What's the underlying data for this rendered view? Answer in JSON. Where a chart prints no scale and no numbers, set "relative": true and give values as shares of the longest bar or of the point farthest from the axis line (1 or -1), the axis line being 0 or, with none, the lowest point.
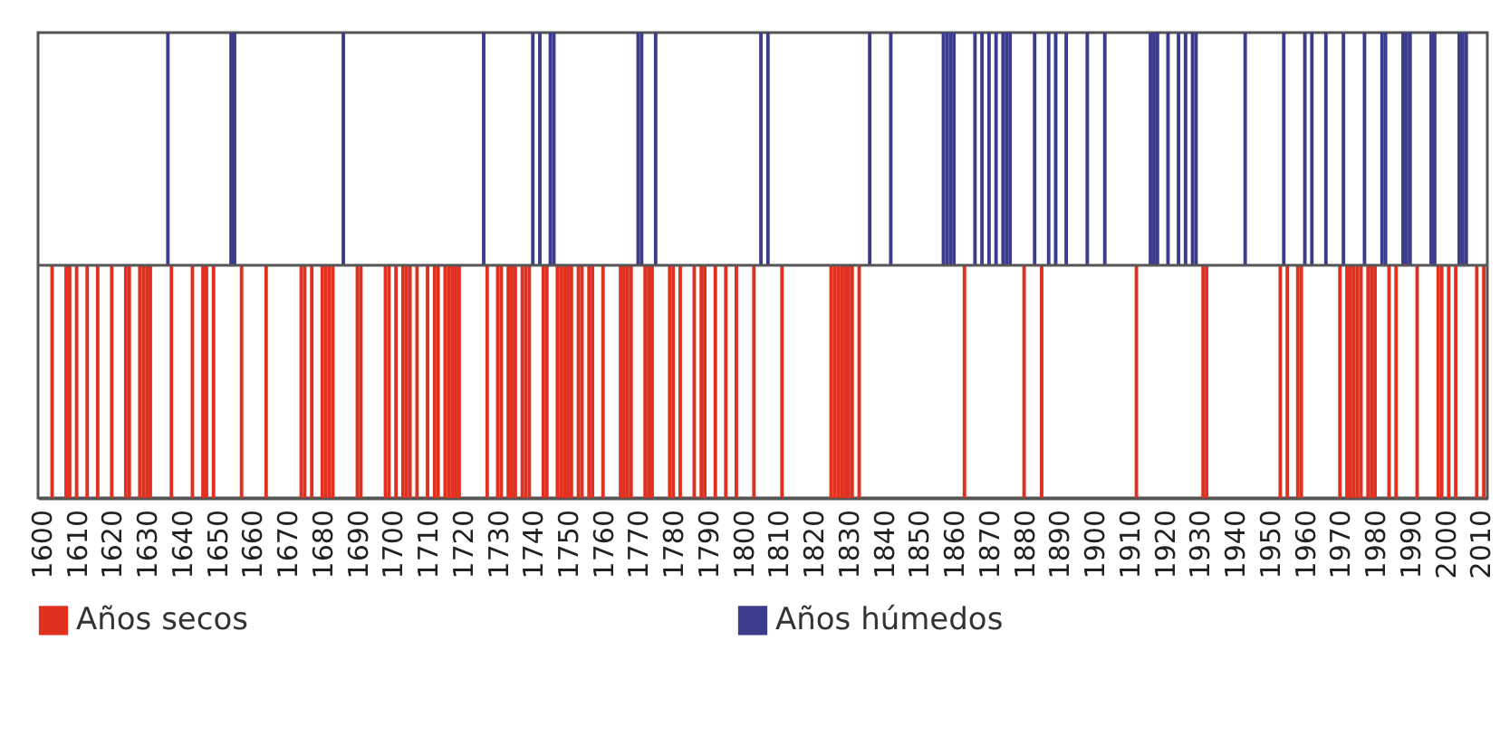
{
  "chart_data": {
    "type": "bar",
    "relative": true,
    "xlim": [
      1599,
      2012
    ],
    "xticks": [
      1600,
      1610,
      1620,
      1630,
      1640,
      1650,
      1660,
      1670,
      1680,
      1690,
      1700,
      1710,
      1720,
      1730,
      1740,
      1750,
      1760,
      1770,
      1780,
      1790,
      1800,
      1810,
      1820,
      1830,
      1840,
      1850,
      1860,
      1870,
      1880,
      1890,
      1900,
      1910,
      1920,
      1930,
      1940,
      1950,
      1960,
      1970,
      1980,
      1990,
      2000,
      2010
    ],
    "tick_labels": "x",
    "legend": "bottom",
    "grid": false,
    "series": [
      {
        "name": "Años secos",
        "color": "#e03020",
        "x": [
          1603,
          1607,
          1608,
          1610,
          1613,
          1616,
          1620,
          1624,
          1625,
          1628,
          1629,
          1630,
          1631,
          1637,
          1643,
          1646,
          1647,
          1649,
          1657,
          1664,
          1674,
          1675,
          1677,
          1680,
          1681,
          1682,
          1683,
          1690,
          1691,
          1698,
          1699,
          1701,
          1703,
          1704,
          1705,
          1707,
          1710,
          1712,
          1713,
          1715,
          1716,
          1717,
          1718,
          1719,
          1727,
          1730,
          1731,
          1733,
          1734,
          1735,
          1737,
          1738,
          1739,
          1743,
          1744,
          1747,
          1748,
          1749,
          1750,
          1751,
          1753,
          1754,
          1756,
          1757,
          1760,
          1765,
          1766,
          1767,
          1768,
          1772,
          1773,
          1774,
          1779,
          1780,
          1782,
          1786,
          1788,
          1789,
          1792,
          1795,
          1798,
          1803,
          1811,
          1825,
          1826,
          1827,
          1828,
          1829,
          1830,
          1831,
          1833,
          1863,
          1880,
          1885,
          1912,
          1931,
          1932,
          1953,
          1955,
          1958,
          1959,
          1970,
          1972,
          1973,
          1974,
          1975,
          1976,
          1978,
          1979,
          1980,
          1984,
          1986,
          1992,
          1998,
          1999,
          2001,
          2003,
          2009,
          2011
        ],
        "values": [
          -1,
          -1,
          -1,
          -1,
          -1,
          -1,
          -1,
          -1,
          -1,
          -1,
          -1,
          -1,
          -1,
          -1,
          -1,
          -1,
          -1,
          -1,
          -1,
          -1,
          -1,
          -1,
          -1,
          -1,
          -1,
          -1,
          -1,
          -1,
          -1,
          -1,
          -1,
          -1,
          -1,
          -1,
          -1,
          -1,
          -1,
          -1,
          -1,
          -1,
          -1,
          -1,
          -1,
          -1,
          -1,
          -1,
          -1,
          -1,
          -1,
          -1,
          -1,
          -1,
          -1,
          -1,
          -1,
          -1,
          -1,
          -1,
          -1,
          -1,
          -1,
          -1,
          -1,
          -1,
          -1,
          -1,
          -1,
          -1,
          -1,
          -1,
          -1,
          -1,
          -1,
          -1,
          -1,
          -1,
          -1,
          -1,
          -1,
          -1,
          -1,
          -1,
          -1,
          -1,
          -1,
          -1,
          -1,
          -1,
          -1,
          -1,
          -1,
          -1,
          -1,
          -1,
          -1,
          -1,
          -1,
          -1,
          -1,
          -1,
          -1,
          -1,
          -1,
          -1,
          -1,
          -1,
          -1,
          -1,
          -1,
          -1,
          -1,
          -1,
          -1,
          -1,
          -1,
          -1,
          -1,
          -1,
          -1
        ]
      },
      {
        "name": "Años húmedos",
        "color": "#3c3c8c",
        "x": [
          1636,
          1654,
          1655,
          1686,
          1726,
          1740,
          1742,
          1745,
          1746,
          1770,
          1771,
          1775,
          1805,
          1807,
          1836,
          1842,
          1857,
          1858,
          1859,
          1860,
          1866,
          1868,
          1870,
          1872,
          1874,
          1875,
          1876,
          1883,
          1887,
          1889,
          1892,
          1898,
          1903,
          1916,
          1917,
          1918,
          1921,
          1924,
          1926,
          1928,
          1929,
          1943,
          1954,
          1960,
          1962,
          1966,
          1971,
          1977,
          1982,
          1983,
          1988,
          1989,
          1990,
          1996,
          1997,
          2004,
          2005,
          2006
        ],
        "values": [
          1,
          1,
          1,
          1,
          1,
          1,
          1,
          1,
          1,
          1,
          1,
          1,
          1,
          1,
          1,
          1,
          1,
          1,
          1,
          1,
          1,
          1,
          1,
          1,
          1,
          1,
          1,
          1,
          1,
          1,
          1,
          1,
          1,
          1,
          1,
          1,
          1,
          1,
          1,
          1,
          1,
          1,
          1,
          1,
          1,
          1,
          1,
          1,
          1,
          1,
          1,
          1,
          1,
          1,
          1,
          1,
          1,
          1
        ]
      }
    ]
  }
}
